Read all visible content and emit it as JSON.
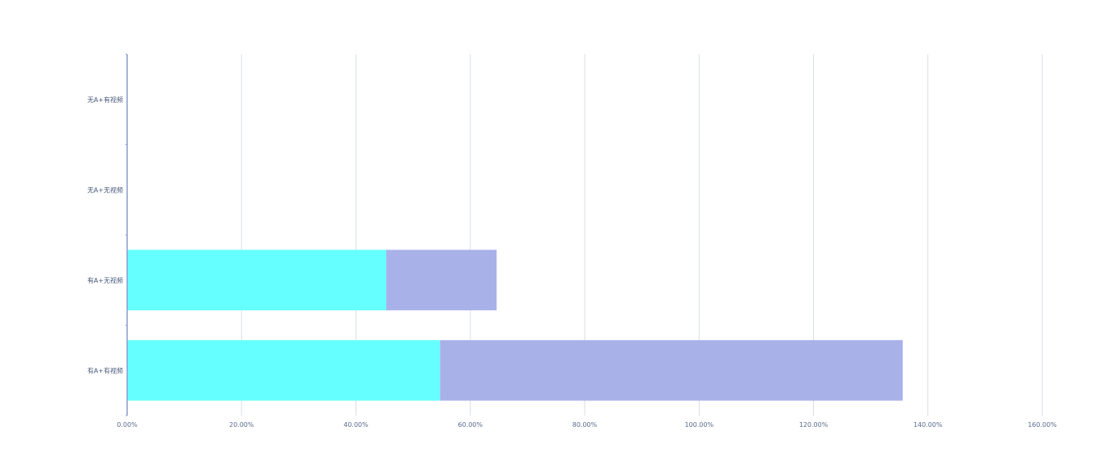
{
  "chart_data": {
    "type": "bar",
    "orientation": "horizontal",
    "stacked": true,
    "categories": [
      "有A+有视频",
      "有A+无视频",
      "无A+无视频",
      "无A+有视频"
    ],
    "series": [
      {
        "values": [
          54.7,
          45.3,
          0,
          0
        ],
        "color": "#66ffff"
      },
      {
        "values": [
          80.9,
          19.3,
          0,
          0
        ],
        "color": "#a9b1e9"
      }
    ],
    "x_ticks": [
      "0.00%",
      "20.00%",
      "40.00%",
      "60.00%",
      "80.00%",
      "100.00%",
      "120.00%",
      "140.00%",
      "160.00%"
    ],
    "xlim": [
      0,
      160
    ],
    "grid": true,
    "colors": {
      "axis": "#8a9bcf",
      "grid": "#d8dde8"
    }
  }
}
